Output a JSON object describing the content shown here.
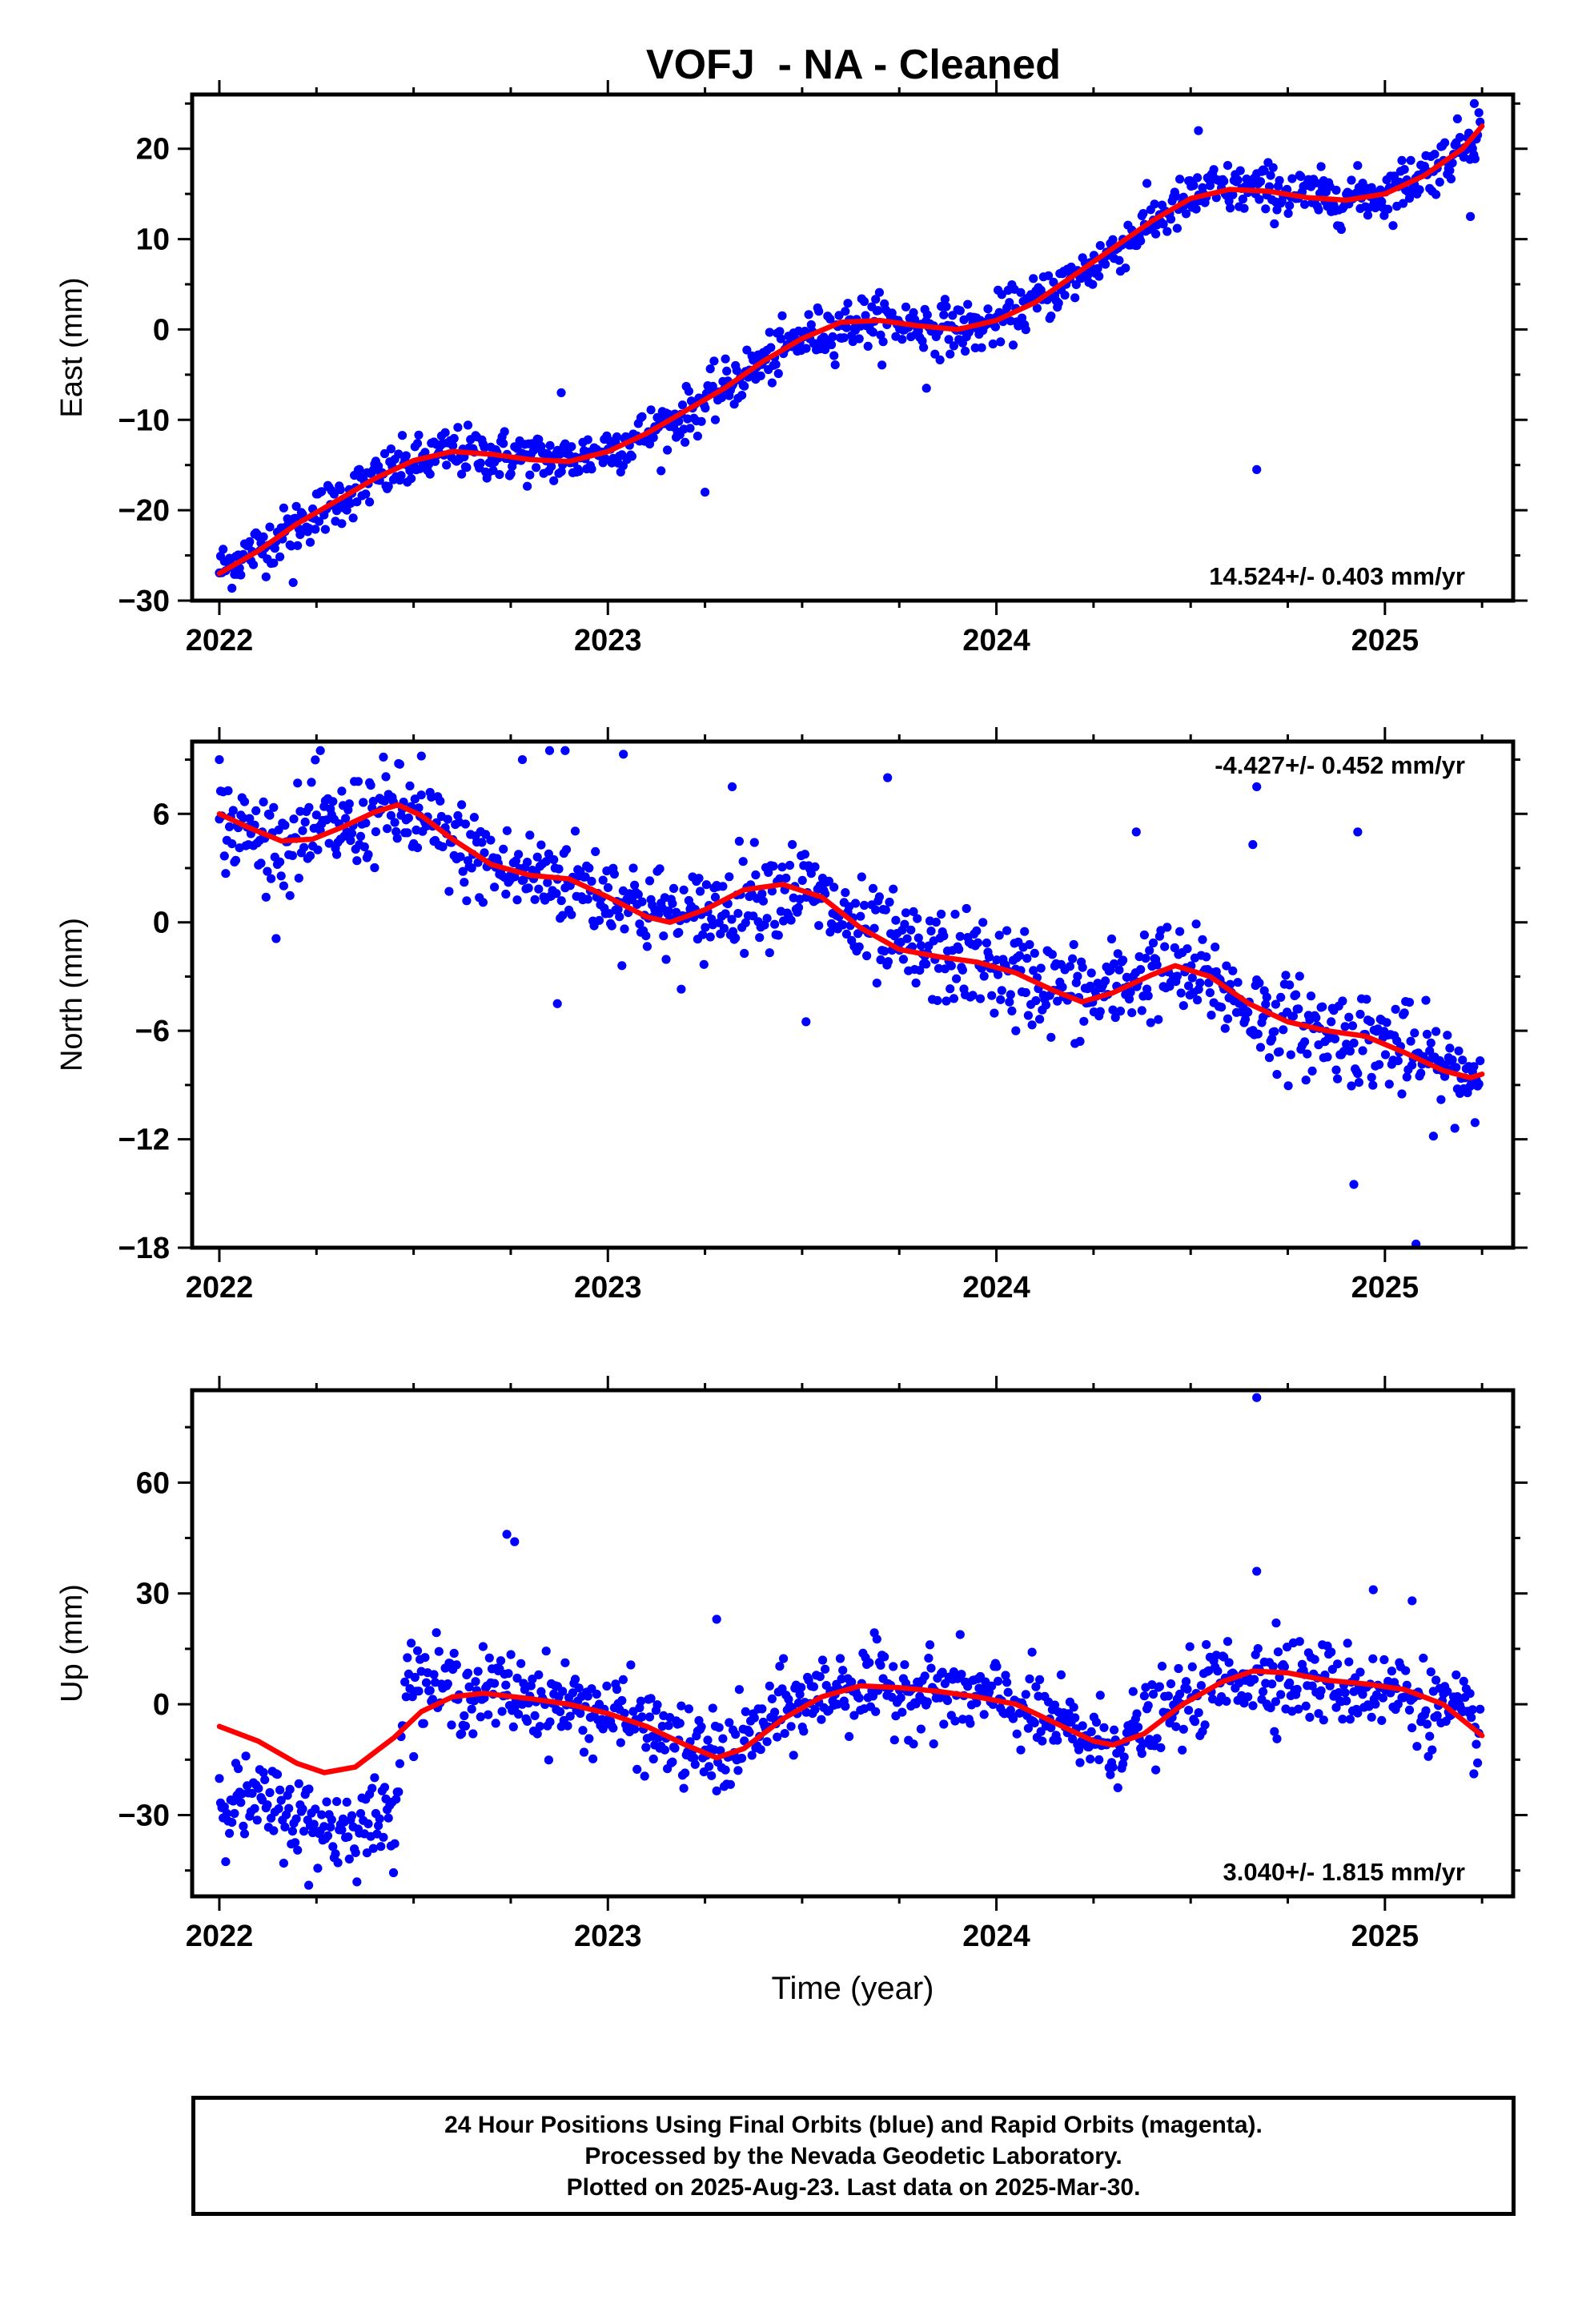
{
  "title": "VOFJ  - NA - Cleaned",
  "footer": {
    "lines": [
      "24 Hour Positions Using Final Orbits (blue) and Rapid Orbits (magenta).",
      "Processed by the Nevada Geodetic Laboratory.",
      "Plotted on 2025-Aug-23. Last data on 2025-Mar-30."
    ]
  },
  "colors": {
    "final_orbits": "#0000ff",
    "model_fit": "#ff0000",
    "frame": "#000000"
  },
  "chart_data": [
    {
      "type": "scatter",
      "ylabel": "East (mm)",
      "xlabel": "",
      "xlim": [
        2021.93,
        2025.33
      ],
      "ylim": [
        -30,
        26
      ],
      "x_ticks": [
        2022,
        2023,
        2024,
        2025
      ],
      "y_ticks": [
        -30,
        -20,
        -10,
        0,
        10,
        20
      ],
      "rate_label": "14.524+/- 0.403 mm/yr",
      "rate_label_position": "bottom-right",
      "series": [
        {
          "role": "daily positions",
          "color": "#0000ff",
          "trend_points": [
            [
              2022.0,
              -26.5
            ],
            [
              2022.15,
              -23
            ],
            [
              2022.3,
              -19
            ],
            [
              2022.45,
              -15.5
            ],
            [
              2022.6,
              -13.5
            ],
            [
              2022.75,
              -14
            ],
            [
              2022.9,
              -14.5
            ],
            [
              2023.05,
              -12.5
            ],
            [
              2023.2,
              -9.5
            ],
            [
              2023.35,
              -5
            ],
            [
              2023.5,
              -1
            ],
            [
              2023.65,
              1
            ],
            [
              2023.8,
              0.5
            ],
            [
              2023.95,
              0
            ],
            [
              2024.1,
              3
            ],
            [
              2024.25,
              7
            ],
            [
              2024.4,
              12
            ],
            [
              2024.55,
              15.5
            ],
            [
              2024.7,
              15.5
            ],
            [
              2024.85,
              14.5
            ],
            [
              2025.0,
              15
            ],
            [
              2025.15,
              18.5
            ],
            [
              2025.25,
              22.5
            ]
          ],
          "scatter_sd": 1.4,
          "outliers": [
            [
              2024.67,
              -15.5
            ],
            [
              2022.19,
              -28
            ],
            [
              2023.25,
              -18
            ],
            [
              2023.82,
              -6.5
            ],
            [
              2022.88,
              -7
            ],
            [
              2024.52,
              22
            ],
            [
              2025.23,
              25
            ],
            [
              2025.22,
              12.5
            ]
          ]
        },
        {
          "role": "model fit",
          "color": "#ff0000",
          "points": [
            [
              2022.0,
              -27
            ],
            [
              2022.1,
              -24.5
            ],
            [
              2022.2,
              -21.5
            ],
            [
              2022.3,
              -19
            ],
            [
              2022.4,
              -16.5
            ],
            [
              2022.5,
              -14.5
            ],
            [
              2022.6,
              -13.5
            ],
            [
              2022.7,
              -13.8
            ],
            [
              2022.8,
              -14.4
            ],
            [
              2022.9,
              -14.6
            ],
            [
              2023.0,
              -13.5
            ],
            [
              2023.1,
              -11.5
            ],
            [
              2023.2,
              -9
            ],
            [
              2023.3,
              -6.5
            ],
            [
              2023.4,
              -3.5
            ],
            [
              2023.5,
              -1
            ],
            [
              2023.6,
              0.8
            ],
            [
              2023.7,
              1
            ],
            [
              2023.8,
              0.4
            ],
            [
              2023.9,
              0
            ],
            [
              2024.0,
              1
            ],
            [
              2024.1,
              3
            ],
            [
              2024.2,
              6
            ],
            [
              2024.3,
              9
            ],
            [
              2024.4,
              12
            ],
            [
              2024.5,
              14.5
            ],
            [
              2024.6,
              15.5
            ],
            [
              2024.7,
              15.3
            ],
            [
              2024.8,
              14.6
            ],
            [
              2024.9,
              14.3
            ],
            [
              2025.0,
              15
            ],
            [
              2025.1,
              17
            ],
            [
              2025.2,
              20
            ],
            [
              2025.25,
              22.5
            ]
          ]
        }
      ]
    },
    {
      "type": "scatter",
      "ylabel": "North (mm)",
      "xlabel": "",
      "xlim": [
        2021.93,
        2025.33
      ],
      "ylim": [
        -18,
        10
      ],
      "x_ticks": [
        2022,
        2023,
        2024,
        2025
      ],
      "y_ticks": [
        -18,
        -12,
        -6,
        0,
        6
      ],
      "rate_label": "-4.427+/- 0.452 mm/yr",
      "rate_label_position": "top-right",
      "series": [
        {
          "role": "daily positions",
          "color": "#0000ff",
          "trend_points": [
            [
              2022.0,
              5.5
            ],
            [
              2022.15,
              4.3
            ],
            [
              2022.3,
              5.2
            ],
            [
              2022.45,
              6.3
            ],
            [
              2022.6,
              4.3
            ],
            [
              2022.75,
              2.7
            ],
            [
              2022.9,
              2.4
            ],
            [
              2023.05,
              1.2
            ],
            [
              2023.2,
              0
            ],
            [
              2023.35,
              1.5
            ],
            [
              2023.5,
              2
            ],
            [
              2023.65,
              -0.5
            ],
            [
              2023.8,
              -1.8
            ],
            [
              2023.95,
              -2.2
            ],
            [
              2024.1,
              -3.2
            ],
            [
              2024.25,
              -4.2
            ],
            [
              2024.4,
              -2.6
            ],
            [
              2024.55,
              -3.2
            ],
            [
              2024.7,
              -5.4
            ],
            [
              2024.85,
              -6.1
            ],
            [
              2025.0,
              -6.6
            ],
            [
              2025.15,
              -8.2
            ],
            [
              2025.25,
              -8.5
            ]
          ],
          "scatter_sd": 1.3,
          "outliers": [
            [
              2022.0,
              9
            ],
            [
              2022.26,
              9.5
            ],
            [
              2022.52,
              9.2
            ],
            [
              2022.78,
              9
            ],
            [
              2022.85,
              9.5
            ],
            [
              2022.89,
              9.5
            ],
            [
              2023.04,
              9.3
            ],
            [
              2022.87,
              -4.5
            ],
            [
              2023.51,
              -5.5
            ],
            [
              2023.32,
              7.5
            ],
            [
              2023.72,
              8
            ],
            [
              2024.05,
              -6
            ],
            [
              2024.36,
              5
            ],
            [
              2024.93,
              5
            ],
            [
              2024.92,
              -14.5
            ],
            [
              2025.08,
              -17.8
            ],
            [
              2024.67,
              7.5
            ],
            [
              2024.66,
              4.3
            ]
          ]
        },
        {
          "role": "model fit",
          "color": "#ff0000",
          "points": [
            [
              2022.0,
              6
            ],
            [
              2022.08,
              5.2
            ],
            [
              2022.16,
              4.5
            ],
            [
              2022.24,
              4.6
            ],
            [
              2022.32,
              5.3
            ],
            [
              2022.4,
              6.1
            ],
            [
              2022.46,
              6.5
            ],
            [
              2022.52,
              5.9
            ],
            [
              2022.6,
              4.6
            ],
            [
              2022.7,
              3.2
            ],
            [
              2022.8,
              2.6
            ],
            [
              2022.9,
              2.4
            ],
            [
              2023.0,
              1.4
            ],
            [
              2023.1,
              0.3
            ],
            [
              2023.16,
              0
            ],
            [
              2023.25,
              0.7
            ],
            [
              2023.35,
              1.8
            ],
            [
              2023.45,
              2.1
            ],
            [
              2023.55,
              1.4
            ],
            [
              2023.65,
              -0.3
            ],
            [
              2023.75,
              -1.5
            ],
            [
              2023.85,
              -1.9
            ],
            [
              2023.95,
              -2.2
            ],
            [
              2024.05,
              -2.8
            ],
            [
              2024.15,
              -3.8
            ],
            [
              2024.22,
              -4.4
            ],
            [
              2024.3,
              -3.9
            ],
            [
              2024.4,
              -2.9
            ],
            [
              2024.46,
              -2.4
            ],
            [
              2024.55,
              -3
            ],
            [
              2024.65,
              -4.5
            ],
            [
              2024.75,
              -5.5
            ],
            [
              2024.85,
              -6
            ],
            [
              2024.95,
              -6.3
            ],
            [
              2025.05,
              -7.2
            ],
            [
              2025.15,
              -8.2
            ],
            [
              2025.22,
              -8.6
            ],
            [
              2025.25,
              -8.4
            ]
          ]
        }
      ]
    },
    {
      "type": "scatter",
      "ylabel": "Up (mm)",
      "xlabel": "Time (year)",
      "xlim": [
        2021.93,
        2025.33
      ],
      "ylim": [
        -52,
        85
      ],
      "x_ticks": [
        2022,
        2023,
        2024,
        2025
      ],
      "y_ticks": [
        -30,
        0,
        30,
        60
      ],
      "rate_label": "3.040+/- 1.815 mm/yr",
      "rate_label_position": "bottom-right",
      "series": [
        {
          "role": "daily positions",
          "color": "#0000ff",
          "trend_points": [
            [
              2022.0,
              -25
            ],
            [
              2022.15,
              -28
            ],
            [
              2022.3,
              -34
            ],
            [
              2022.45,
              -30
            ],
            [
              2022.48,
              7
            ],
            [
              2022.6,
              4
            ],
            [
              2022.75,
              3
            ],
            [
              2022.9,
              0
            ],
            [
              2023.05,
              -4
            ],
            [
              2023.2,
              -12
            ],
            [
              2023.3,
              -14
            ],
            [
              2023.45,
              -2
            ],
            [
              2023.6,
              5
            ],
            [
              2023.75,
              4
            ],
            [
              2023.9,
              3
            ],
            [
              2024.05,
              0
            ],
            [
              2024.2,
              -8
            ],
            [
              2024.3,
              -11
            ],
            [
              2024.45,
              -2
            ],
            [
              2024.6,
              8
            ],
            [
              2024.75,
              7
            ],
            [
              2024.9,
              5
            ],
            [
              2025.05,
              3
            ],
            [
              2025.25,
              -7
            ]
          ],
          "scatter_sd": 5.5,
          "outliers": [
            [
              2024.67,
              83
            ],
            [
              2022.74,
              46
            ],
            [
              2022.76,
              44
            ],
            [
              2024.67,
              36
            ],
            [
              2024.97,
              31
            ],
            [
              2025.07,
              28
            ],
            [
              2022.23,
              -49
            ],
            [
              2023.28,
              23
            ],
            [
              2024.72,
              22
            ]
          ]
        },
        {
          "role": "model fit",
          "color": "#ff0000",
          "points": [
            [
              2022.0,
              -6
            ],
            [
              2022.1,
              -10
            ],
            [
              2022.2,
              -16
            ],
            [
              2022.27,
              -18.5
            ],
            [
              2022.35,
              -17
            ],
            [
              2022.45,
              -9
            ],
            [
              2022.52,
              -2
            ],
            [
              2022.6,
              2
            ],
            [
              2022.68,
              3
            ],
            [
              2022.8,
              1.5
            ],
            [
              2022.9,
              0
            ],
            [
              2023.0,
              -2.5
            ],
            [
              2023.1,
              -6
            ],
            [
              2023.2,
              -11
            ],
            [
              2023.28,
              -14.5
            ],
            [
              2023.35,
              -12
            ],
            [
              2023.45,
              -4
            ],
            [
              2023.55,
              2
            ],
            [
              2023.65,
              5
            ],
            [
              2023.75,
              4.5
            ],
            [
              2023.85,
              3.5
            ],
            [
              2023.95,
              2
            ],
            [
              2024.05,
              0
            ],
            [
              2024.15,
              -5
            ],
            [
              2024.25,
              -10
            ],
            [
              2024.3,
              -11
            ],
            [
              2024.38,
              -8
            ],
            [
              2024.48,
              0
            ],
            [
              2024.58,
              6
            ],
            [
              2024.66,
              9
            ],
            [
              2024.75,
              8.5
            ],
            [
              2024.85,
              6.5
            ],
            [
              2024.95,
              5.5
            ],
            [
              2025.05,
              4
            ],
            [
              2025.15,
              0
            ],
            [
              2025.25,
              -8.5
            ]
          ]
        }
      ]
    }
  ]
}
